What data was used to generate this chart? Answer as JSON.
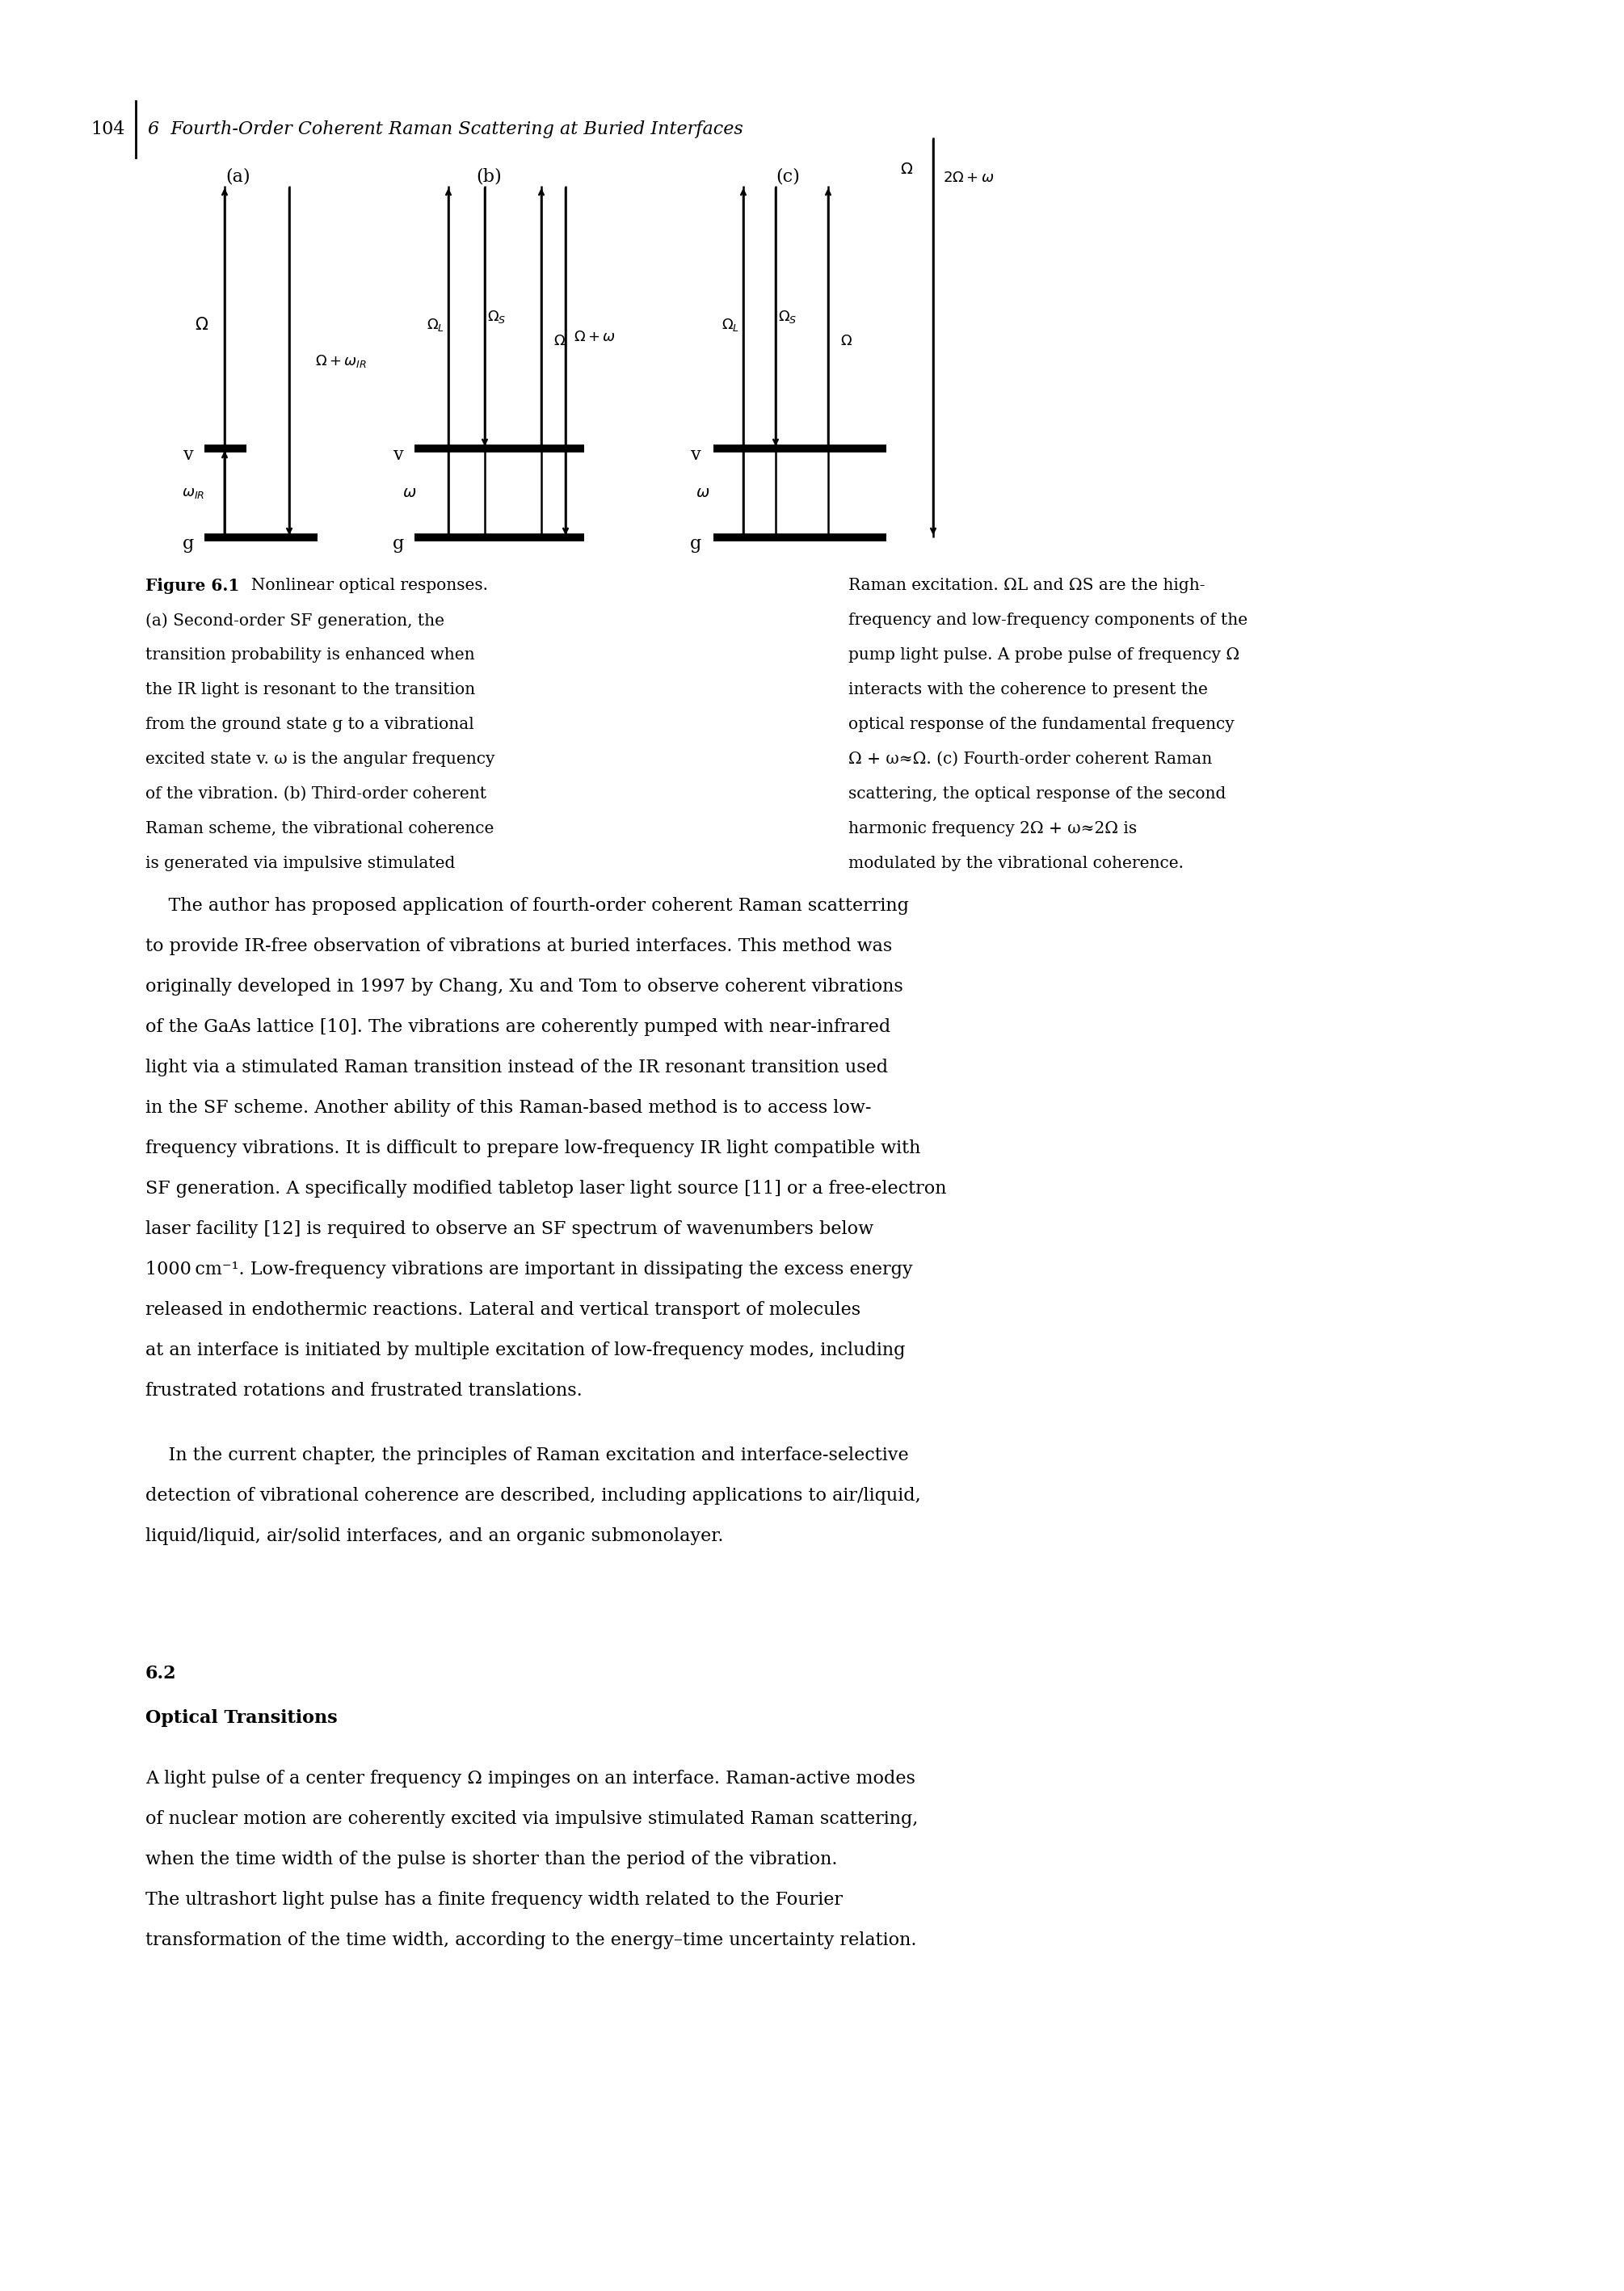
{
  "page_width": 20.1,
  "page_height": 28.35,
  "background_color": "#ffffff",
  "header_page_num": "104",
  "header_title": "6  Fourth-Order Coherent Raman Scattering at Buried Interfaces",
  "body_paragraph1_indent": "    The author has proposed application of fourth-order coherent Raman scatterring\nto provide IR-free observation of vibrations at buried interfaces. This method was\noriginally developed in 1997 by Chang, Xu and Tom to observe coherent vibrations\nof the GaAs lattice [10]. The vibrations are coherently pumped with near-infrared\nlight via a stimulated Raman transition instead of the IR resonant transition used\nin the SF scheme. Another ability of this Raman-based method is to access low-\nfrequency vibrations. It is difficult to prepare low-frequency IR light compatible with\nSF generation. A specifically modified tabletop laser light source [11] or a free-electron\nlaser facility [12] is required to observe an SF spectrum of wavenumbers below\n1000 cm⁻¹. Low-frequency vibrations are important in dissipating the excess energy\nreleased in endothermic reactions. Lateral and vertical transport of molecules\nat an interface is initiated by multiple excitation of low-frequency modes, including\nfrustrated rotations and frustrated translations.",
  "body_paragraph2": "    In the current chapter, the principles of Raman excitation and interface-selective\ndetection of vibrational coherence are described, including applications to air/liquid,\nliquid/liquid, air/solid interfaces, and an organic submonolayer.",
  "section_number": "6.2",
  "section_title": "Optical Transitions",
  "section_paragraph": "A light pulse of a center frequency Ω impinges on an interface. Raman-active modes\nof nuclear motion are coherently excited via impulsive stimulated Raman scattering,\nwhen the time width of the pulse is shorter than the period of the vibration.\nThe ultrashort light pulse has a finite frequency width related to the Fourier\ntransformation of the time width, according to the energy–time uncertainty relation.",
  "cap_left": "(a) Second-order SF generation, the\ntransition probability is enhanced when\nthe IR light is resonant to the transition\nfrom the ground state g to a vibrational\nexcited state v. ω is the angular frequency\nof the vibration. (b) Third-order coherent\nRaman scheme, the vibrational coherence\nis generated via impulsive stimulated",
  "cap_right": "Raman excitation. ΩL and ΩS are the high-\nfrequency and low-frequency components of the\npump light pulse. A probe pulse of frequency Ω\ninteracts with the coherence to present the\noptical response of the fundamental frequency\nΩ + ω≈Ω. (c) Fourth-order coherent Raman\nscattering, the optical response of the second\nharmonic frequency 2Ω + ω≈2Ω is\nmodulated by the vibrational coherence."
}
